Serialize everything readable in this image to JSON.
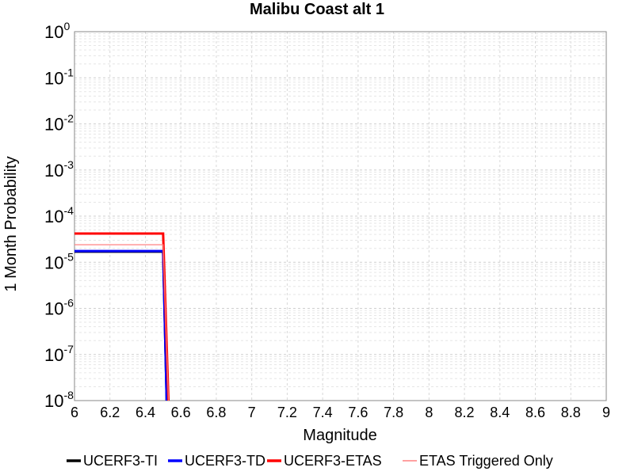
{
  "chart_data": {
    "type": "line",
    "title": "Malibu Coast alt 1",
    "xlabel": "Magnitude",
    "ylabel": "1 Month Probability",
    "xlim": [
      6,
      9
    ],
    "ylim": [
      1e-08,
      1
    ],
    "yscale": "log",
    "grid": true,
    "legend_position": "bottom",
    "x_ticks": [
      "6",
      "6.2",
      "6.4",
      "6.6",
      "6.8",
      "7",
      "7.2",
      "7.4",
      "7.6",
      "7.8",
      "8",
      "8.2",
      "8.4",
      "8.6",
      "8.8",
      "9"
    ],
    "y_ticks": [
      {
        "base": "10",
        "exp": "0"
      },
      {
        "base": "10",
        "exp": "-1"
      },
      {
        "base": "10",
        "exp": "-2"
      },
      {
        "base": "10",
        "exp": "-3"
      },
      {
        "base": "10",
        "exp": "-4"
      },
      {
        "base": "10",
        "exp": "-5"
      },
      {
        "base": "10",
        "exp": "-6"
      },
      {
        "base": "10",
        "exp": "-7"
      },
      {
        "base": "10",
        "exp": "-8"
      }
    ],
    "series": [
      {
        "name": "UCERF3-TI",
        "color": "#000000",
        "points": [
          [
            6.0,
            1.7e-05
          ],
          [
            6.5,
            1.7e-05
          ],
          [
            6.52,
            1e-10
          ]
        ]
      },
      {
        "name": "UCERF3-TD",
        "color": "#0000ff",
        "points": [
          [
            6.0,
            1.75e-05
          ],
          [
            6.5,
            1.75e-05
          ],
          [
            6.52,
            1e-10
          ]
        ]
      },
      {
        "name": "UCERF3-ETAS",
        "color": "#ff0000",
        "points": [
          [
            6.0,
            4.2e-05
          ],
          [
            6.5,
            4.2e-05
          ],
          [
            6.53,
            1e-10
          ]
        ]
      },
      {
        "name": "ETAS Triggered Only",
        "color": "#ff8080",
        "points": [
          [
            6.0,
            2.4e-05
          ],
          [
            6.5,
            2.4e-05
          ],
          [
            6.53,
            1e-10
          ]
        ]
      }
    ]
  }
}
